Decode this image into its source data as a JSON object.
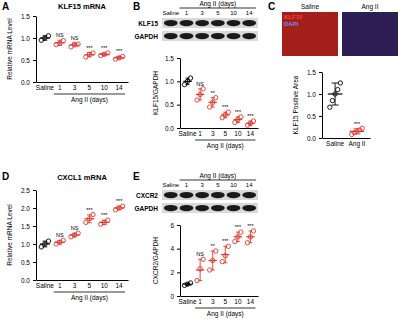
{
  "chart_data": [
    {
      "type": "dot",
      "panel_label": "A",
      "title": "KLF15 mRNA",
      "y_label": "Relative mRNA Level",
      "x_group_label": "Ang II (days)",
      "categories": [
        "Saline",
        "1",
        "3",
        "5",
        "10",
        "14"
      ],
      "values": [
        1.0,
        0.89,
        0.84,
        0.62,
        0.63,
        0.55
      ],
      "error": [
        0.05,
        0.06,
        0.04,
        0.05,
        0.03,
        0.03
      ],
      "points": [
        [
          0.95,
          1.0,
          1.05
        ],
        [
          0.85,
          0.88,
          0.94
        ],
        [
          0.8,
          0.86,
          0.86
        ],
        [
          0.57,
          0.63,
          0.66
        ],
        [
          0.6,
          0.63,
          0.66
        ],
        [
          0.52,
          0.55,
          0.58
        ]
      ],
      "annotations": [
        null,
        "NS",
        "NS",
        "***",
        "***",
        "***"
      ],
      "colors": [
        "#000000",
        "#e03a2f",
        "#e03a2f",
        "#e03a2f",
        "#e03a2f",
        "#e03a2f"
      ],
      "ylim": [
        0,
        1.5
      ],
      "yticks": [
        {
          "value": 0,
          "label": "0.0"
        },
        {
          "value": 0.5,
          "label": "0.5"
        },
        {
          "value": 1,
          "label": "1.0"
        },
        {
          "value": 1.5,
          "label": "1.5"
        }
      ]
    },
    {
      "type": "dot",
      "panel_label": "B",
      "y_label": "KLF15/GAPDH",
      "x_group_label": "Ang II (days)",
      "blot": {
        "rows": [
          "KLF15",
          "GAPDH"
        ],
        "lanes": [
          "Saline",
          "1",
          "3",
          "5",
          "10",
          "14"
        ],
        "group_label": "Ang II (days)"
      },
      "categories": [
        "Saline",
        "1",
        "3",
        "5",
        "10",
        "14"
      ],
      "values": [
        1.0,
        0.72,
        0.55,
        0.28,
        0.18,
        0.1
      ],
      "error": [
        0.07,
        0.12,
        0.1,
        0.06,
        0.06,
        0.05
      ],
      "points": [
        [
          0.93,
          1.0,
          1.07
        ],
        [
          0.6,
          0.72,
          0.84
        ],
        [
          0.45,
          0.55,
          0.65
        ],
        [
          0.22,
          0.28,
          0.34
        ],
        [
          0.12,
          0.18,
          0.24
        ],
        [
          0.06,
          0.1,
          0.15
        ]
      ],
      "annotations": [
        null,
        "NS",
        "**",
        "***",
        "***",
        "***"
      ],
      "colors": [
        "#000000",
        "#e03a2f",
        "#e03a2f",
        "#e03a2f",
        "#e03a2f",
        "#e03a2f"
      ],
      "ylim": [
        0,
        1.5
      ],
      "yticks": [
        {
          "value": 0,
          "label": "0.0"
        },
        {
          "value": 0.5,
          "label": "0.5"
        },
        {
          "value": 1,
          "label": "1.0"
        },
        {
          "value": 1.5,
          "label": "1.5"
        }
      ]
    },
    {
      "type": "dot",
      "panel_label": "C",
      "y_label": "KLF15 Positive Area",
      "images": {
        "labels": [
          "Saline",
          "Ang II"
        ],
        "channels": [
          "KLF15",
          "DAPI"
        ]
      },
      "categories": [
        "Saline",
        "Ang II"
      ],
      "values": [
        1.0,
        0.15
      ],
      "error": [
        0.25,
        0.06
      ],
      "points": [
        [
          0.7,
          0.85,
          1.0,
          1.1,
          1.25
        ],
        [
          0.08,
          0.12,
          0.15,
          0.18,
          0.22
        ]
      ],
      "annotations": [
        null,
        "***"
      ],
      "colors": [
        "#000000",
        "#e03a2f"
      ],
      "ylim": [
        0,
        1.5
      ],
      "yticks": [
        {
          "value": 0,
          "label": "0.0"
        },
        {
          "value": 0.5,
          "label": "0.5"
        },
        {
          "value": 1,
          "label": "1.0"
        },
        {
          "value": 1.5,
          "label": "1.5"
        }
      ]
    },
    {
      "type": "dot",
      "panel_label": "D",
      "title": "CXCL1 mRNA",
      "y_label": "Relative mRNA Level",
      "x_group_label": "Ang II (days)",
      "categories": [
        "Saline",
        "1",
        "3",
        "5",
        "10",
        "14"
      ],
      "values": [
        1.0,
        1.05,
        1.25,
        1.7,
        1.6,
        2.0
      ],
      "error": [
        0.08,
        0.05,
        0.05,
        0.11,
        0.06,
        0.05
      ],
      "points": [
        [
          0.92,
          1.0,
          1.08
        ],
        [
          1.0,
          1.05,
          1.1
        ],
        [
          1.2,
          1.25,
          1.3
        ],
        [
          1.6,
          1.7,
          1.82
        ],
        [
          1.55,
          1.6,
          1.66
        ],
        [
          1.95,
          2.0,
          2.05
        ]
      ],
      "annotations": [
        null,
        "NS",
        "NS",
        "***",
        "***",
        "***"
      ],
      "colors": [
        "#000000",
        "#e03a2f",
        "#e03a2f",
        "#e03a2f",
        "#e03a2f",
        "#e03a2f"
      ],
      "ylim": [
        0,
        2.5
      ],
      "yticks": [
        {
          "value": 0,
          "label": "0.0"
        },
        {
          "value": 0.5,
          "label": "0.5"
        },
        {
          "value": 1,
          "label": "1.0"
        },
        {
          "value": 1.5,
          "label": "1.5"
        },
        {
          "value": 2,
          "label": "2.0"
        },
        {
          "value": 2.5,
          "label": "2.5"
        }
      ]
    },
    {
      "type": "dot",
      "panel_label": "E",
      "y_label": "CXCR2/GAPDH",
      "x_group_label": "Ang II (days)",
      "blot": {
        "rows": [
          "CXCR2",
          "GAPDH"
        ],
        "lanes": [
          "Saline",
          "1",
          "3",
          "5",
          "10",
          "14"
        ],
        "group_label": "Ang II (days)"
      },
      "categories": [
        "Saline",
        "1",
        "3",
        "5",
        "10",
        "14"
      ],
      "values": [
        1.0,
        2.2,
        3.0,
        3.5,
        5.0,
        5.0
      ],
      "error": [
        0.1,
        0.9,
        0.8,
        0.7,
        0.4,
        0.5
      ],
      "points": [
        [
          0.9,
          1.0,
          1.1
        ],
        [
          1.3,
          2.3,
          3.1
        ],
        [
          2.2,
          3.0,
          3.8
        ],
        [
          2.9,
          3.4,
          4.2
        ],
        [
          4.6,
          5.0,
          5.4
        ],
        [
          4.5,
          5.0,
          5.5
        ]
      ],
      "annotations": [
        null,
        "NS",
        "**",
        "***",
        "***",
        "***"
      ],
      "colors": [
        "#000000",
        "#e03a2f",
        "#e03a2f",
        "#e03a2f",
        "#e03a2f",
        "#e03a2f"
      ],
      "ylim": [
        0,
        6
      ],
      "yticks": [
        0,
        2,
        4,
        6
      ]
    }
  ]
}
